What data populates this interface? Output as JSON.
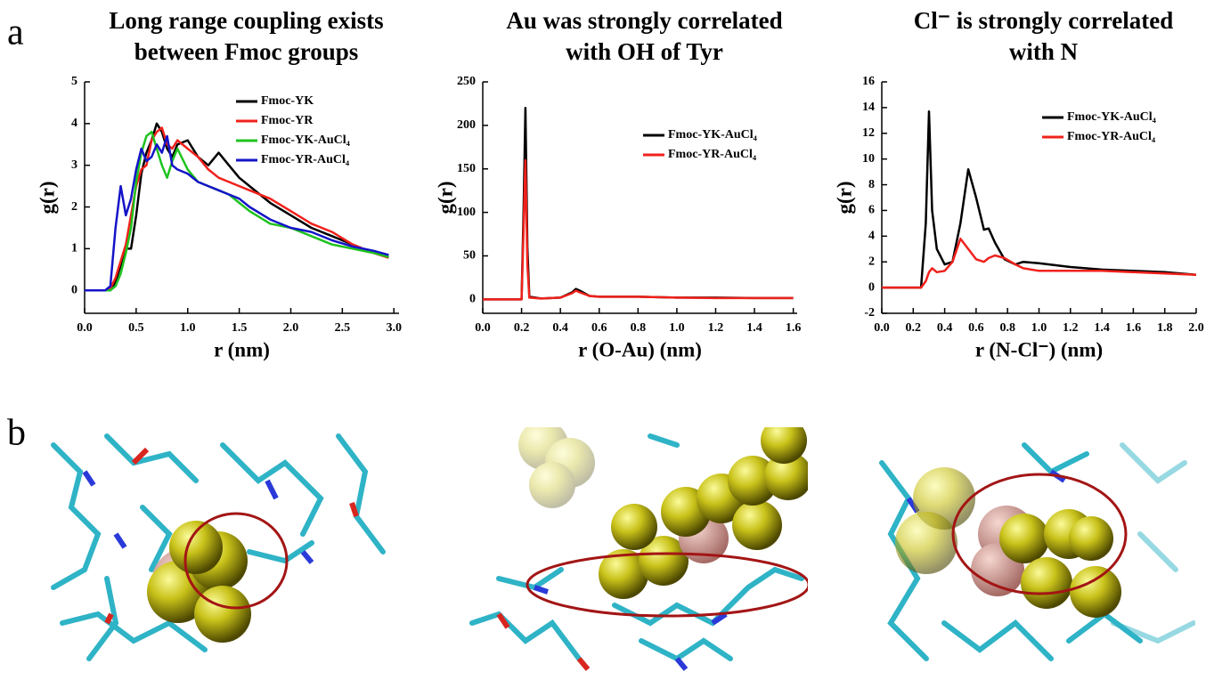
{
  "panel_labels": [
    "a",
    "b"
  ],
  "chart_data": [
    {
      "type": "line",
      "title": [
        "Long range coupling exists",
        "between Fmoc groups"
      ],
      "xlabel": "r (nm)",
      "ylabel": "g(r)",
      "xlim": [
        0,
        3.05
      ],
      "ylim": [
        -0.55,
        5
      ],
      "xticks": [
        {
          "value": 0,
          "label": "0.0"
        },
        {
          "value": 0.5,
          "label": "0.5"
        },
        {
          "value": 1,
          "label": "1.0"
        },
        {
          "value": 1.5,
          "label": "1.5"
        },
        {
          "value": 2,
          "label": "2.0"
        },
        {
          "value": 2.5,
          "label": "2.5"
        },
        {
          "value": 3,
          "label": "3.0"
        }
      ],
      "yticks": [
        0,
        1,
        2,
        3,
        4,
        5
      ],
      "legend": "upper right",
      "x": [
        0,
        0.2,
        0.25,
        0.3,
        0.35,
        0.4,
        0.45,
        0.5,
        0.55,
        0.6,
        0.65,
        0.7,
        0.75,
        0.8,
        0.85,
        0.9,
        1.0,
        1.1,
        1.2,
        1.3,
        1.4,
        1.5,
        1.6,
        1.8,
        2.0,
        2.2,
        2.4,
        2.6,
        2.8,
        2.95
      ],
      "series": [
        {
          "name": "Fmoc-YK",
          "color": "#000000",
          "values": [
            0,
            0,
            0,
            0.2,
            0.6,
            1.0,
            1.0,
            1.8,
            2.8,
            3.3,
            3.6,
            4.0,
            3.8,
            3.4,
            3.2,
            3.5,
            3.6,
            3.2,
            3.0,
            3.3,
            3.0,
            2.7,
            2.5,
            2.1,
            1.8,
            1.5,
            1.3,
            1.1,
            0.9,
            0.8
          ]
        },
        {
          "name": "Fmoc-YR",
          "color": "#f0211b",
          "values": [
            0,
            0,
            0.05,
            0.3,
            0.7,
            1.1,
            1.8,
            2.5,
            2.9,
            3.0,
            3.6,
            3.8,
            3.9,
            3.5,
            3.4,
            3.6,
            3.4,
            3.2,
            2.9,
            2.7,
            2.6,
            2.5,
            2.4,
            2.2,
            1.9,
            1.6,
            1.4,
            1.1,
            0.9,
            0.78
          ]
        },
        {
          "name": "Fmoc-YK-AuCl₄",
          "color": "#1ec31e",
          "values": [
            0,
            0,
            0,
            0.1,
            0.4,
            0.9,
            1.5,
            2.6,
            3.3,
            3.7,
            3.8,
            3.4,
            3.0,
            2.7,
            3.1,
            3.4,
            2.9,
            2.6,
            2.5,
            2.4,
            2.3,
            2.1,
            1.9,
            1.6,
            1.5,
            1.3,
            1.1,
            1.0,
            0.9,
            0.8
          ]
        },
        {
          "name": "Fmoc-YR-AuCl₄",
          "color": "#1414c8",
          "values": [
            0,
            0,
            0.1,
            1.5,
            2.5,
            1.8,
            2.2,
            2.9,
            3.4,
            3.1,
            3.2,
            3.5,
            3.3,
            3.7,
            3.0,
            2.9,
            2.8,
            2.6,
            2.5,
            2.4,
            2.3,
            2.2,
            2.0,
            1.7,
            1.5,
            1.4,
            1.2,
            1.05,
            0.95,
            0.85
          ]
        }
      ]
    },
    {
      "type": "line",
      "title": [
        "Au was strongly correlated",
        "with OH of Tyr"
      ],
      "xlabel": "r (O-Au) (nm)",
      "ylabel": "g(r)",
      "xlim": [
        0,
        1.62
      ],
      "ylim": [
        -16,
        250
      ],
      "xticks": [
        {
          "value": 0,
          "label": "0.0"
        },
        {
          "value": 0.2,
          "label": "0.2"
        },
        {
          "value": 0.4,
          "label": "0.4"
        },
        {
          "value": 0.6,
          "label": "0.6"
        },
        {
          "value": 0.8,
          "label": "0.8"
        },
        {
          "value": 1,
          "label": "1.0"
        },
        {
          "value": 1.2,
          "label": "1.2"
        },
        {
          "value": 1.4,
          "label": "1.4"
        },
        {
          "value": 1.6,
          "label": "1.6"
        }
      ],
      "yticks": [
        0,
        50,
        100,
        150,
        200,
        250
      ],
      "legend": "center right",
      "x": [
        0,
        0.2,
        0.21,
        0.22,
        0.23,
        0.24,
        0.3,
        0.4,
        0.46,
        0.48,
        0.5,
        0.55,
        0.6,
        0.8,
        1.0,
        1.2,
        1.4,
        1.6
      ],
      "series": [
        {
          "name": "Fmoc-YK-AuCl₄",
          "color": "#000000",
          "values": [
            0,
            0,
            100,
            220,
            60,
            3,
            1,
            2,
            8,
            12,
            10,
            4,
            3,
            3,
            2,
            2,
            1.5,
            1.5
          ]
        },
        {
          "name": "Fmoc-YR-AuCl₄",
          "color": "#f0211b",
          "values": [
            0,
            0,
            80,
            160,
            40,
            2,
            1,
            2,
            7,
            10,
            8,
            4,
            3,
            3,
            2,
            1.5,
            1.5,
            1.5
          ]
        }
      ]
    },
    {
      "type": "line",
      "title": [
        "Cl⁻ is strongly correlated",
        "with N"
      ],
      "xlabel": "r (N-Cl⁻) (nm)",
      "ylabel": "g(r)",
      "xlim": [
        0,
        2.0
      ],
      "ylim": [
        -2,
        16
      ],
      "xticks": [
        {
          "value": 0,
          "label": "0.0"
        },
        {
          "value": 0.2,
          "label": "0.2"
        },
        {
          "value": 0.4,
          "label": "0.4"
        },
        {
          "value": 0.6,
          "label": "0.6"
        },
        {
          "value": 0.8,
          "label": "0.8"
        },
        {
          "value": 1,
          "label": "1.0"
        },
        {
          "value": 1.2,
          "label": "1.2"
        },
        {
          "value": 1.4,
          "label": "1.4"
        },
        {
          "value": 1.6,
          "label": "1.6"
        },
        {
          "value": 1.8,
          "label": "1.8"
        },
        {
          "value": 2,
          "label": "2.0"
        }
      ],
      "yticks": [
        -2,
        0,
        2,
        4,
        6,
        8,
        10,
        12,
        14,
        16
      ],
      "legend": "upper right",
      "x": [
        0,
        0.25,
        0.28,
        0.3,
        0.32,
        0.35,
        0.4,
        0.45,
        0.5,
        0.55,
        0.6,
        0.65,
        0.68,
        0.72,
        0.78,
        0.85,
        0.9,
        1.0,
        1.2,
        1.4,
        1.6,
        1.8,
        2.0
      ],
      "series": [
        {
          "name": "Fmoc-YK-AuCl₄",
          "color": "#000000",
          "values": [
            0,
            0,
            5,
            13.7,
            6,
            3,
            1.8,
            2,
            5,
            9.2,
            7,
            4.5,
            4.6,
            3.5,
            2.2,
            1.8,
            2.0,
            1.9,
            1.6,
            1.4,
            1.3,
            1.2,
            1.0
          ]
        },
        {
          "name": "Fmoc-YR-AuCl₄",
          "color": "#f0211b",
          "values": [
            0,
            0,
            0.5,
            1.2,
            1.5,
            1.2,
            1.3,
            2,
            3.8,
            3.0,
            2.2,
            2.0,
            2.3,
            2.5,
            2.3,
            1.8,
            1.5,
            1.3,
            1.3,
            1.3,
            1.2,
            1.1,
            1.0
          ]
        }
      ]
    }
  ]
}
